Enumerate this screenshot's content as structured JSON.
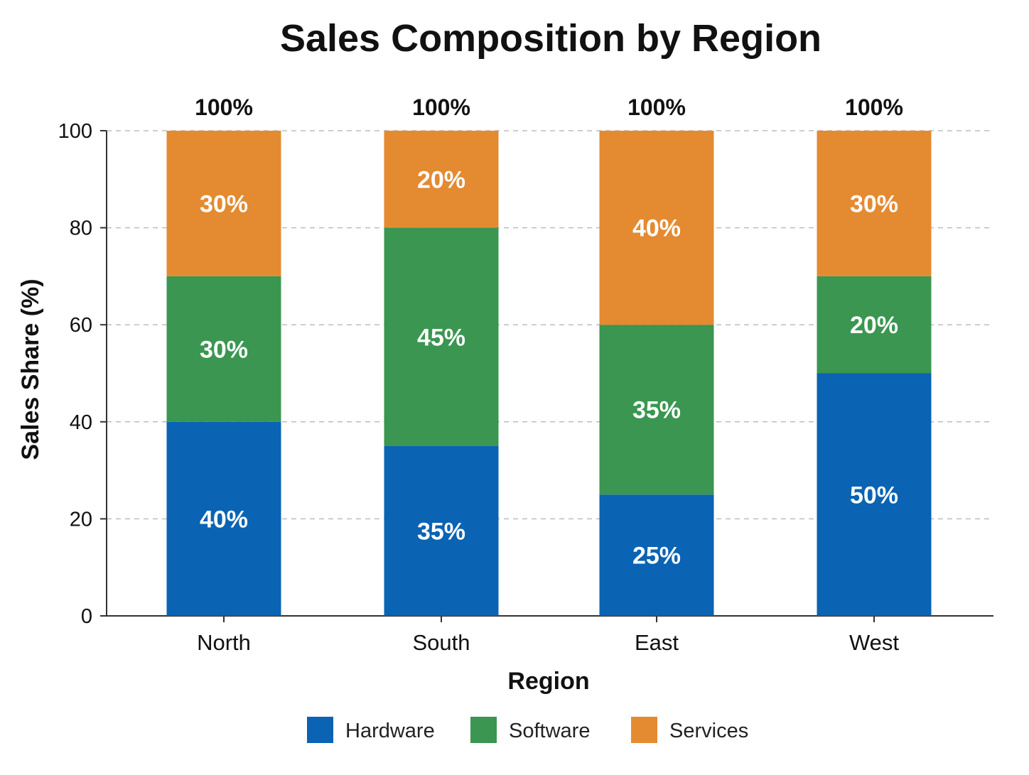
{
  "chart_data": {
    "type": "bar",
    "stacked": true,
    "title": "Sales Composition by Region",
    "xlabel": "Region",
    "ylabel": "Sales Share (%)",
    "ylim": [
      0,
      100
    ],
    "yticks": [
      0,
      20,
      40,
      60,
      80,
      100
    ],
    "grid": "horizontal dashed",
    "legend_position": "bottom",
    "categories": [
      "North",
      "South",
      "East",
      "West"
    ],
    "series": [
      {
        "name": "Hardware",
        "color": "#0A63B3",
        "values": [
          40,
          35,
          25,
          50
        ],
        "labels": [
          "40%",
          "35%",
          "25%",
          "50%"
        ]
      },
      {
        "name": "Software",
        "color": "#3A9650",
        "values": [
          30,
          45,
          35,
          20
        ],
        "labels": [
          "30%",
          "45%",
          "35%",
          "20%"
        ]
      },
      {
        "name": "Services",
        "color": "#E48A31",
        "values": [
          30,
          20,
          40,
          30
        ],
        "labels": [
          "30%",
          "20%",
          "40%",
          "30%"
        ]
      }
    ],
    "totals": [
      "100%",
      "100%",
      "100%",
      "100%"
    ]
  }
}
